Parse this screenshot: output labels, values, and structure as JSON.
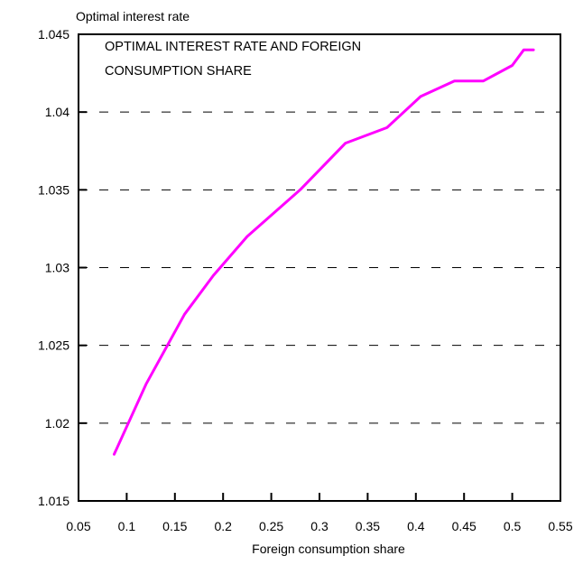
{
  "chart_data": {
    "type": "line",
    "title_lines": [
      "OPTIMAL INTEREST RATE AND FOREIGN",
      "CONSUMPTION SHARE"
    ],
    "ylabel": "Optimal  interest rate",
    "xlabel": "Foreign consumption share",
    "xlim": [
      0.05,
      0.55
    ],
    "ylim": [
      1.015,
      1.045
    ],
    "x_ticks": [
      "0.05",
      "0.1",
      "0.15",
      "0.2",
      "0.25",
      "0.3",
      "0.35",
      "0.4",
      "0.45",
      "0.5",
      "0.55"
    ],
    "y_ticks": [
      "1.015",
      "1.02",
      "1.025",
      "1.03",
      "1.035",
      "1.04",
      "1.045"
    ],
    "grid": "dashed horizontal",
    "legend": "none",
    "series": [
      {
        "color": "#ff00ff",
        "x": [
          0.087,
          0.12,
          0.16,
          0.19,
          0.225,
          0.28,
          0.327,
          0.37,
          0.405,
          0.44,
          0.47,
          0.5,
          0.512,
          0.522
        ],
        "y": [
          1.018,
          1.0225,
          1.027,
          1.0295,
          1.032,
          1.035,
          1.038,
          1.039,
          1.041,
          1.042,
          1.042,
          1.043,
          1.044,
          1.044
        ]
      }
    ]
  }
}
